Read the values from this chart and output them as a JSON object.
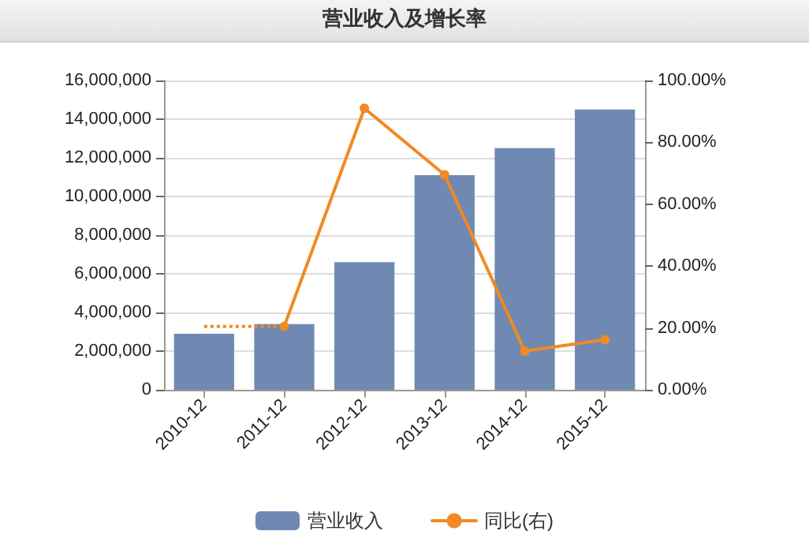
{
  "chart_data": {
    "type": "bar",
    "title": "营业收入及增长率",
    "categories": [
      "2010-12",
      "2011-12",
      "2012-12",
      "2013-12",
      "2014-12",
      "2015-12"
    ],
    "series": [
      {
        "name": "营业收入",
        "color": "#6f89b3",
        "values": [
          2900000,
          3400000,
          6600000,
          11100000,
          12500000,
          14500000
        ]
      },
      {
        "name": "同比(右)",
        "type": "line",
        "axis": "y2",
        "color": "#f08a24",
        "marker": "circle",
        "line_style": "solid",
        "values": [
          null,
          20.5,
          91,
          69.5,
          12.5,
          16.2
        ]
      },
      {
        "type": "line",
        "axis": "y2",
        "color": "#f08a24",
        "line_style": "dotted",
        "values": [
          20.5,
          20.5,
          null,
          null,
          null,
          null
        ]
      }
    ],
    "ylim": [
      0,
      16000000
    ],
    "yticks": [
      0,
      {
        "value": 2000000,
        "label": "2,000,000"
      },
      {
        "value": 4000000,
        "label": "4,000,000"
      },
      {
        "value": 6000000,
        "label": "6,000,000"
      },
      {
        "value": 8000000,
        "label": "8,000,000"
      },
      {
        "value": 10000000,
        "label": "10,000,000"
      },
      {
        "value": 12000000,
        "label": "12,000,000"
      },
      {
        "value": 14000000,
        "label": "14,000,000"
      },
      {
        "value": 16000000,
        "label": "16,000,000"
      }
    ],
    "y2lim": [
      0,
      100
    ],
    "y2ticks": [
      {
        "value": 0,
        "label": "0.00%"
      },
      {
        "value": 20,
        "label": "20.00%"
      },
      {
        "value": 40,
        "label": "40.00%"
      },
      {
        "value": 60,
        "label": "60.00%"
      },
      {
        "value": 80,
        "label": "80.00%"
      },
      {
        "value": 100,
        "label": "100.00%"
      }
    ],
    "grid": "y",
    "legend": "bottom"
  }
}
